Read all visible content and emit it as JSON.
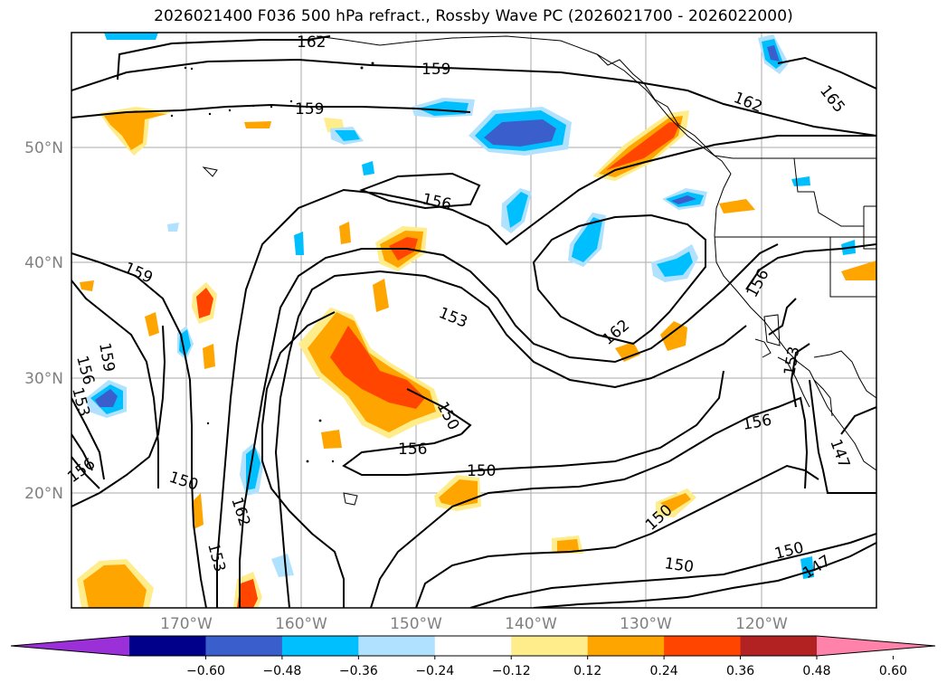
{
  "title": "2026021400 F036 500 hPa refract., Rossby Wave PC (2026021700 - 2026022000)",
  "map": {
    "lat_labels": [
      "50°N",
      "40°N",
      "30°N",
      "20°N"
    ],
    "lon_labels": [
      "170°W",
      "160°W",
      "150°W",
      "140°W",
      "130°W",
      "120°W"
    ],
    "contour_labels": [
      "162",
      "159",
      "165",
      "159",
      "162",
      "156",
      "159",
      "159",
      "156",
      "153",
      "156",
      "153",
      "162",
      "156",
      "153",
      "150",
      "156",
      "156",
      "150",
      "150",
      "162",
      "153",
      "147",
      "150",
      "150",
      "150",
      "147"
    ]
  },
  "colorbar": {
    "colors": [
      "#9b30d8",
      "#00008b",
      "#3a5fcd",
      "#00bfff",
      "#b0e2ff",
      "#ffffff",
      "#ffec8b",
      "#ffa500",
      "#ff4500",
      "#b22222",
      "#ff82ab"
    ],
    "tick_labels": [
      "−0.60",
      "−0.48",
      "−0.36",
      "−0.24",
      "−0.12",
      "0.12",
      "0.24",
      "0.36",
      "0.48",
      "0.60"
    ]
  }
}
